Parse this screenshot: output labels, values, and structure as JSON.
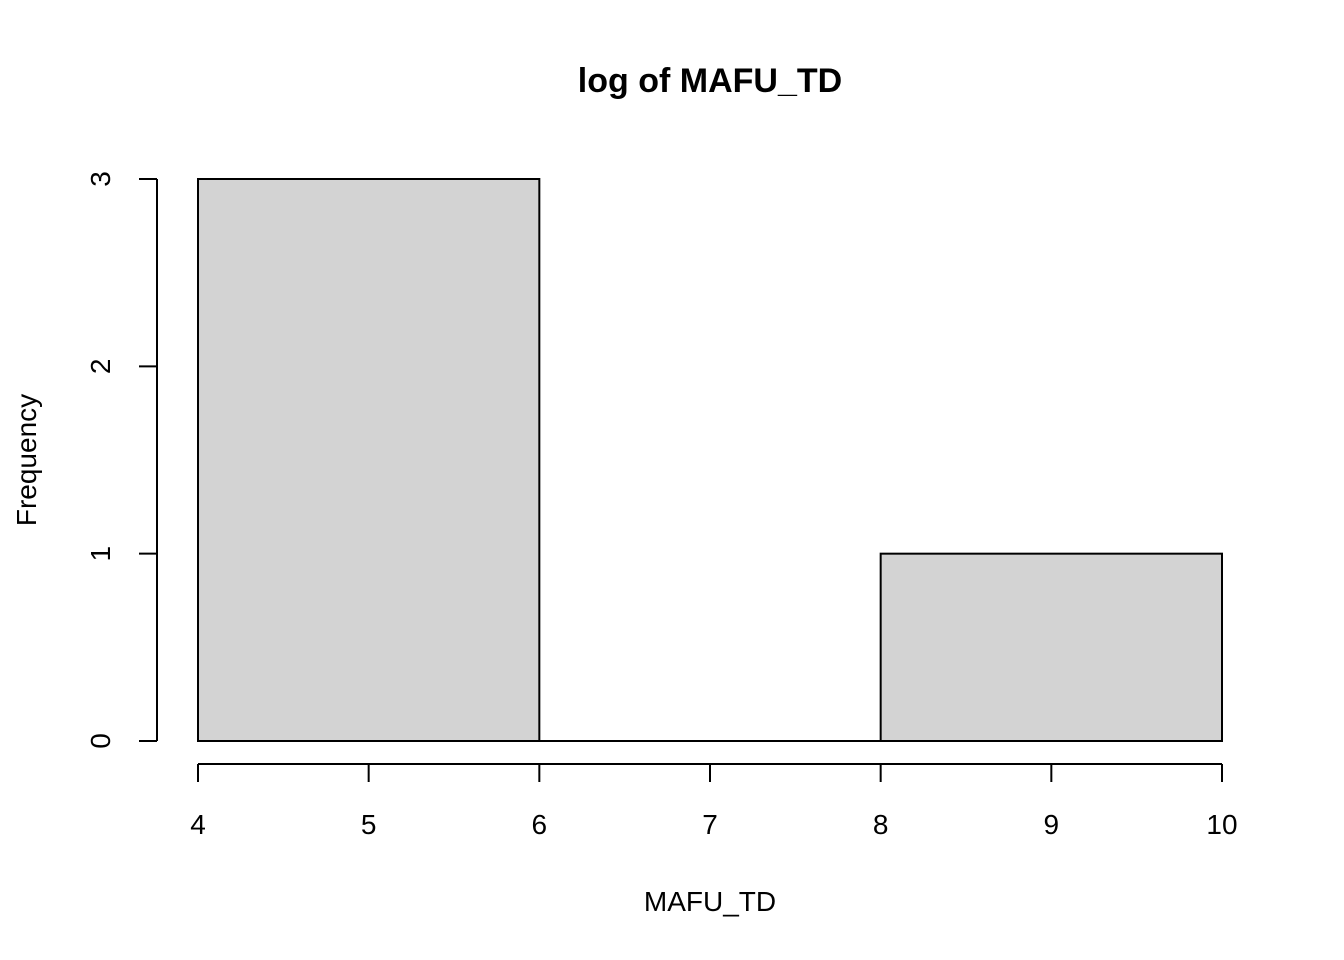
{
  "chart_data": {
    "type": "bar",
    "histogram": true,
    "title": "log of MAFU_TD",
    "xlabel": "MAFU_TD",
    "ylabel": "Frequency",
    "bins": [
      {
        "start": 4,
        "end": 6,
        "count": 3
      },
      {
        "start": 6,
        "end": 8,
        "count": 0
      },
      {
        "start": 8,
        "end": 10,
        "count": 1
      }
    ],
    "x_ticks": [
      "4",
      "5",
      "6",
      "7",
      "8",
      "9",
      "10"
    ],
    "y_ticks": [
      "0",
      "1",
      "2",
      "3"
    ],
    "xlim": [
      4,
      10
    ],
    "ylim": [
      0,
      3
    ],
    "grid": false,
    "legend": "none",
    "bar_fill": "#d3d3d3",
    "bar_stroke": "#000000"
  }
}
